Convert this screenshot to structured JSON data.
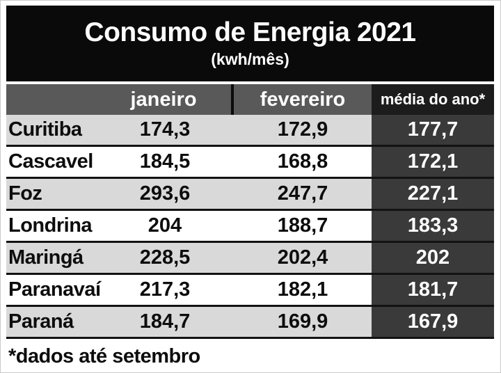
{
  "title": {
    "heading": "Consumo de Energia 2021",
    "subtitle": "(kwh/mês)"
  },
  "table": {
    "headers": {
      "city": "",
      "janeiro": "janeiro",
      "fevereiro": "fevereiro",
      "media": "média do ano*"
    },
    "rows": [
      {
        "city": "Curitiba",
        "values": [
          "174,3",
          "172,9",
          "177,7"
        ]
      },
      {
        "city": "Cascavel",
        "values": [
          "184,5",
          "168,8",
          "172,1"
        ]
      },
      {
        "city": "Foz",
        "values": [
          "293,6",
          "247,7",
          "227,1"
        ]
      },
      {
        "city": "Londrina",
        "values": [
          "204",
          "188,7",
          "183,3"
        ]
      },
      {
        "city": "Maringá",
        "values": [
          "228,5",
          "202,4",
          "202"
        ]
      },
      {
        "city": "Paranavaí",
        "values": [
          "217,3",
          "182,1",
          "181,7"
        ]
      },
      {
        "city": "Paraná",
        "values": [
          "184,7",
          "169,9",
          "167,9"
        ]
      }
    ]
  },
  "footnote": "*dados até setembro",
  "colors": {
    "title_bg": "#0a0a0a",
    "header_bg": "#595959",
    "media_header_bg": "#1c1c1c",
    "media_cell_bg": "#3a3a3a",
    "row_alt_bg": "#d9d9d9",
    "row_bg": "#ffffff",
    "separator": "#121212",
    "text_dark": "#0d0d0d",
    "text_light": "#ffffff"
  },
  "chart_data": {
    "type": "table",
    "title": "Consumo de Energia 2021",
    "subtitle": "(kwh/mês)",
    "unit": "kwh/mês",
    "columns": [
      "janeiro",
      "fevereiro",
      "média do ano*"
    ],
    "rows": [
      "Curitiba",
      "Cascavel",
      "Foz",
      "Londrina",
      "Maringá",
      "Paranavaí",
      "Paraná"
    ],
    "values": [
      [
        174.3,
        172.9,
        177.7
      ],
      [
        184.5,
        168.8,
        172.1
      ],
      [
        293.6,
        247.7,
        227.1
      ],
      [
        204.0,
        188.7,
        183.3
      ],
      [
        228.5,
        202.4,
        202.0
      ],
      [
        217.3,
        182.1,
        181.7
      ],
      [
        184.7,
        169.9,
        167.9
      ]
    ],
    "footnote": "*dados até setembro"
  }
}
